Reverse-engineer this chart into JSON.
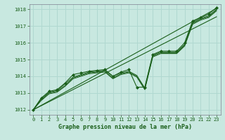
{
  "bg_color": "#c8e8e0",
  "grid_color": "#b0d8d0",
  "line_color": "#1a5f1a",
  "marker_color": "#1a5f1a",
  "xlabel": "Graphe pression niveau de la mer (hPa)",
  "xlabel_color": "#1a5f1a",
  "tick_color": "#1a5f1a",
  "xlim": [
    -0.5,
    23.5
  ],
  "ylim": [
    1011.7,
    1018.3
  ],
  "yticks": [
    1012,
    1013,
    1014,
    1015,
    1016,
    1017,
    1018
  ],
  "xticks": [
    0,
    1,
    2,
    3,
    4,
    5,
    6,
    7,
    8,
    9,
    10,
    11,
    12,
    13,
    14,
    15,
    16,
    17,
    18,
    19,
    20,
    21,
    22,
    23
  ],
  "trend1_x": [
    0,
    23
  ],
  "trend1_y": [
    1012.0,
    1018.05
  ],
  "trend2_x": [
    0,
    23
  ],
  "trend2_y": [
    1012.0,
    1017.55
  ],
  "smooth_lines": [
    [
      1012.0,
      1012.65,
      1013.05,
      1013.15,
      1013.55,
      1013.95,
      1014.1,
      1014.25,
      1014.3,
      1014.35,
      1014.0,
      1014.2,
      1014.3,
      1014.05,
      1013.3,
      1015.25,
      1015.45,
      1015.45,
      1015.45,
      1015.9,
      1017.2,
      1017.45,
      1017.6,
      1018.0
    ],
    [
      1012.0,
      1012.6,
      1013.0,
      1013.1,
      1013.45,
      1013.9,
      1014.05,
      1014.2,
      1014.25,
      1014.3,
      1013.9,
      1014.15,
      1014.25,
      1014.0,
      1013.25,
      1015.2,
      1015.4,
      1015.4,
      1015.4,
      1015.85,
      1017.15,
      1017.4,
      1017.55,
      1017.95
    ],
    [
      1012.0,
      1012.55,
      1012.95,
      1013.05,
      1013.4,
      1013.85,
      1014.0,
      1014.15,
      1014.2,
      1014.25,
      1013.85,
      1014.1,
      1014.2,
      1013.95,
      1013.2,
      1015.15,
      1015.35,
      1015.35,
      1015.35,
      1015.8,
      1017.1,
      1017.35,
      1017.5,
      1017.9
    ]
  ],
  "main_line_y": [
    1012.0,
    1012.7,
    1013.1,
    1013.2,
    1013.6,
    1014.1,
    1014.2,
    1014.3,
    1014.35,
    1014.4,
    1014.0,
    1014.25,
    1014.4,
    1013.35,
    1013.35,
    1015.3,
    1015.5,
    1015.5,
    1015.5,
    1016.0,
    1017.3,
    1017.5,
    1017.7,
    1018.1
  ]
}
